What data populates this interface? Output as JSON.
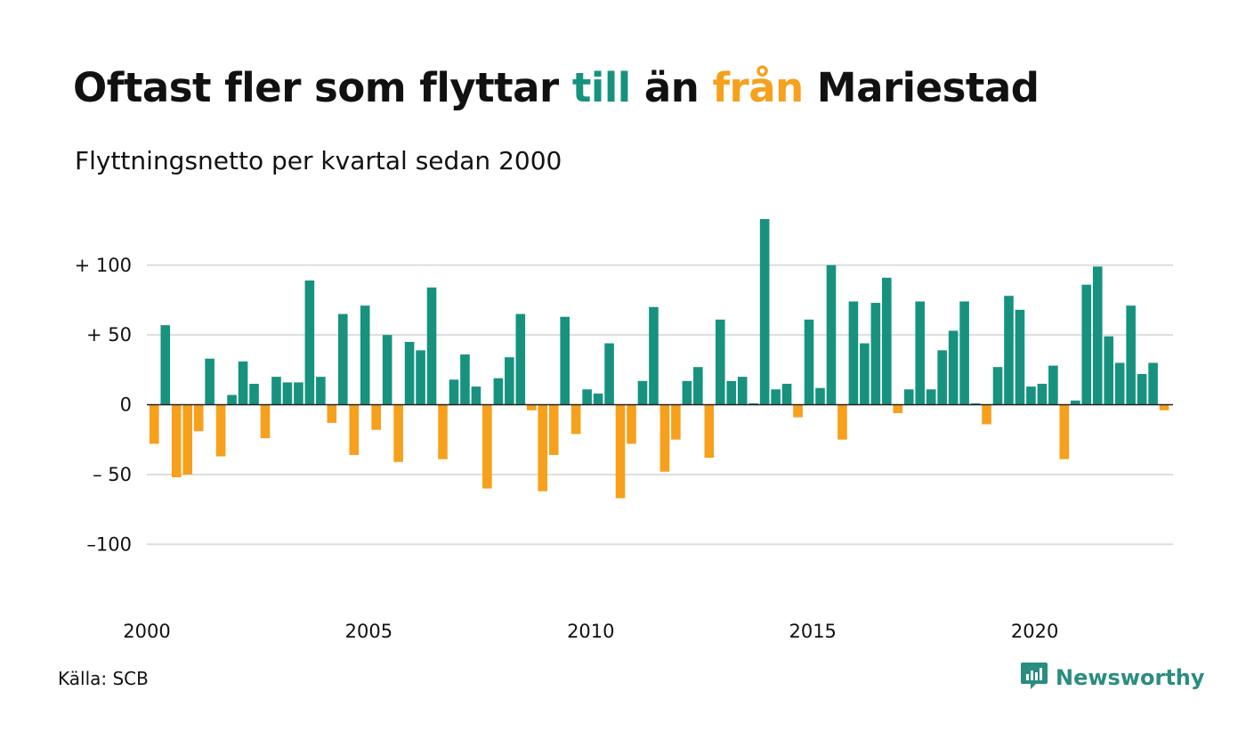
{
  "header": {
    "title_part1": "Oftast fler som flyttar ",
    "title_till": "till",
    "title_part2": " än ",
    "title_fran": "från",
    "title_part3": " Mariestad",
    "subtitle": "Flyttningsnetto per kvartal sedan 2000"
  },
  "footer": {
    "source": "Källa: SCB",
    "brand": "Newsworthy"
  },
  "colors": {
    "positive": "#17927f",
    "negative": "#f6a01c",
    "grid": "#dddddd",
    "text": "#111111",
    "brand": "#2a8d7f"
  },
  "icons": {
    "brand_logo": "newsworthy-logo-icon"
  },
  "chart_data": {
    "type": "bar",
    "title": "Oftast fler som flyttar till än från Mariestad",
    "subtitle": "Flyttningsnetto per kvartal sedan 2000",
    "x_start": "2000 Q1",
    "x_ticks": [
      "2000",
      "2005",
      "2010",
      "2015",
      "2020"
    ],
    "y_ticks": [
      {
        "value": 100,
        "label": "+ 100"
      },
      {
        "value": 50,
        "label": "+  50"
      },
      {
        "value": 0,
        "label": "0"
      },
      {
        "value": -50,
        "label": "– 50"
      },
      {
        "value": -100,
        "label": "–100"
      }
    ],
    "ylim": [
      -147,
      133
    ],
    "grid": true,
    "values": [
      -28,
      57,
      -52,
      -50,
      -19,
      33,
      -37,
      7,
      31,
      15,
      -24,
      20,
      16,
      16,
      89,
      20,
      -13,
      65,
      -36,
      71,
      -18,
      50,
      -41,
      45,
      39,
      84,
      -39,
      18,
      36,
      13,
      -60,
      19,
      34,
      65,
      -4,
      -62,
      -36,
      63,
      -21,
      11,
      8,
      44,
      -67,
      -28,
      17,
      70,
      -48,
      -25,
      17,
      27,
      -38,
      61,
      17,
      20,
      1,
      133,
      11,
      15,
      -9,
      61,
      12,
      100,
      -25,
      74,
      44,
      73,
      91,
      -6,
      11,
      74,
      11,
      39,
      53,
      74,
      1,
      -14,
      27,
      78,
      68,
      13,
      15,
      28,
      -39,
      3,
      86,
      99,
      49,
      30,
      71,
      22,
      30,
      -4
    ]
  }
}
